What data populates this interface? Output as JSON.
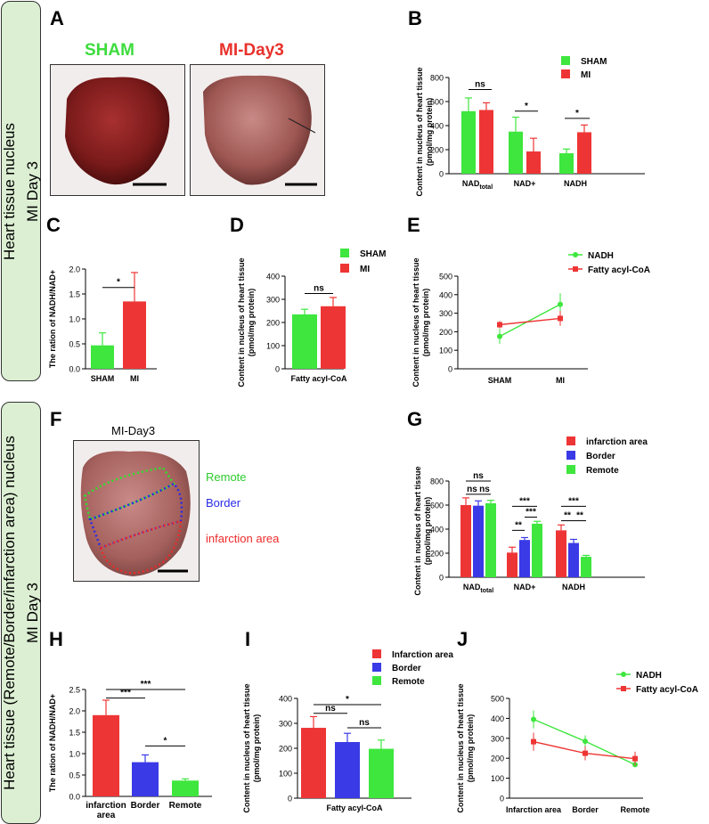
{
  "sidebar": {
    "top": {
      "line1": "Heart tissue nucleus",
      "line2": "MI    Day 3"
    },
    "bottom": {
      "line1": "Heart tissue  (Remote/Border/infarction area)  nucleus",
      "line2": "MI    Day 3"
    }
  },
  "panels": {
    "A": "A",
    "B": "B",
    "C": "C",
    "D": "D",
    "E": "E",
    "F": "F",
    "G": "G",
    "H": "H",
    "I": "I",
    "J": "J"
  },
  "panelA": {
    "sham_title": "SHAM",
    "mi_title": "MI-Day3",
    "sham_color": "#3ddc3d",
    "mi_color": "#e8312b"
  },
  "panelF": {
    "title": "MI-Day3",
    "remote": "Remote",
    "border": "Border",
    "infarct": "infarction area"
  },
  "colors": {
    "sham": "#3ee63e",
    "mi": "#ee3535",
    "infarct": "#ee3535",
    "border": "#3a3ae6",
    "remote": "#3ee63e"
  },
  "chart_data": [
    {
      "id": "B",
      "type": "bar",
      "ylabel": "Content in nucleus of heart tissue",
      "ylabel2": "(pmol/mg protein)",
      "ylim": [
        0,
        800
      ],
      "yticks": [
        0,
        200,
        400,
        600,
        800
      ],
      "categories": [
        {
          "main": "NAD",
          "sub": "total"
        },
        {
          "main": "NAD+",
          "sub": ""
        },
        {
          "main": "NADH",
          "sub": ""
        }
      ],
      "series": [
        {
          "name": "SHAM",
          "values": [
            520,
            350,
            170
          ],
          "errors": [
            110,
            120,
            35
          ]
        },
        {
          "name": "MI",
          "values": [
            530,
            185,
            345
          ],
          "errors": [
            60,
            110,
            60
          ]
        }
      ],
      "sig": [
        "ns",
        "*",
        "*"
      ],
      "legend": "top-right"
    },
    {
      "id": "C",
      "type": "bar",
      "ylabel": "The ration of NADH/NAD+",
      "ylim": [
        0,
        2.0
      ],
      "yticks": [
        "0.0",
        "0.5",
        "1.0",
        "1.5",
        "2.0"
      ],
      "categories": [
        "SHAM",
        "MI"
      ],
      "values": [
        0.47,
        1.35
      ],
      "errors": [
        0.25,
        0.58
      ],
      "sig": "*"
    },
    {
      "id": "D",
      "type": "bar",
      "ylabel": "Content in nucleus of  heart tissue",
      "ylabel2": "(pmol/mg protein)",
      "ylim": [
        0,
        400
      ],
      "yticks": [
        0,
        100,
        200,
        300,
        400
      ],
      "categories": [
        "Fatty acyl-CoA"
      ],
      "series": [
        {
          "name": "SHAM",
          "values": [
            235
          ],
          "errors": [
            22
          ]
        },
        {
          "name": "MI",
          "values": [
            270
          ],
          "errors": [
            38
          ]
        }
      ],
      "sig": "ns",
      "legend": "top-right"
    },
    {
      "id": "E",
      "type": "line",
      "ylabel": "Content in nucleus of  heart tissue",
      "ylabel2": "(pmol/mg protein)",
      "ylim": [
        0,
        500
      ],
      "yticks": [
        0,
        100,
        200,
        300,
        400,
        500
      ],
      "categories": [
        "SHAM",
        "MI"
      ],
      "series": [
        {
          "name": "NADH",
          "values": [
            175,
            348
          ],
          "errors": [
            40,
            60
          ]
        },
        {
          "name": "Fatty acyl-CoA",
          "values": [
            238,
            272
          ],
          "errors": [
            20,
            40
          ]
        }
      ],
      "legend": "top-right"
    },
    {
      "id": "G",
      "type": "bar",
      "ylabel": "Content in nucleus of heart tissue",
      "ylabel2": "(pmol/mg protein)",
      "ylim": [
        0,
        800
      ],
      "yticks": [
        0,
        200,
        400,
        600,
        800
      ],
      "categories": [
        {
          "main": "NAD",
          "sub": "total"
        },
        {
          "main": "NAD+",
          "sub": ""
        },
        {
          "main": "NADH",
          "sub": ""
        }
      ],
      "series": [
        {
          "name": "infarction area",
          "values": [
            600,
            205,
            390
          ],
          "errors": [
            60,
            45,
            45
          ]
        },
        {
          "name": "Border",
          "values": [
            595,
            310,
            285
          ],
          "errors": [
            40,
            20,
            30
          ]
        },
        {
          "name": "Remote",
          "values": [
            615,
            445,
            170
          ],
          "errors": [
            25,
            20,
            12
          ]
        }
      ],
      "sig_labels": [
        "ns",
        "ns",
        "ns",
        "***",
        "**",
        "***",
        "***",
        "**",
        "**"
      ],
      "legend": "top-right"
    },
    {
      "id": "H",
      "type": "bar",
      "ylabel": "The ration of NADH/NAD+",
      "ylim": [
        0,
        2.5
      ],
      "yticks": [
        "0.0",
        "0.5",
        "1.0",
        "1.5",
        "2.0",
        "2.5"
      ],
      "categories": [
        {
          "main": "infarction",
          "sub": "area"
        },
        {
          "main": "Border",
          "sub": ""
        },
        {
          "main": "Remote",
          "sub": ""
        }
      ],
      "values": [
        1.9,
        0.8,
        0.37
      ],
      "errors": [
        0.35,
        0.17,
        0.04
      ],
      "sig_labels": [
        "***",
        "***",
        "*"
      ]
    },
    {
      "id": "I",
      "type": "bar",
      "ylabel": "Content in nucleus of  heart tissue",
      "ylabel2": "(pmol/mg protein)",
      "ylim": [
        0,
        400
      ],
      "yticks": [
        0,
        100,
        200,
        300,
        400
      ],
      "categories": [
        "Fatty acyl-CoA"
      ],
      "series": [
        {
          "name": "Infarction area",
          "values": [
            282
          ],
          "errors": [
            45
          ]
        },
        {
          "name": "Border",
          "values": [
            225
          ],
          "errors": [
            35
          ]
        },
        {
          "name": "Remote",
          "values": [
            198
          ],
          "errors": [
            35
          ]
        }
      ],
      "sig_labels": [
        "ns",
        "*",
        "ns"
      ],
      "legend": "top-right"
    },
    {
      "id": "J",
      "type": "line",
      "ylabel": "Content in nucleus of  heart tissue",
      "ylabel2": "(pmol/mg protein)",
      "ylim": [
        0,
        500
      ],
      "yticks": [
        0,
        100,
        200,
        300,
        400,
        500
      ],
      "categories": [
        "Infarction area",
        "Border",
        "Remote"
      ],
      "series": [
        {
          "name": "NADH",
          "values": [
            395,
            285,
            168
          ],
          "errors": [
            45,
            30,
            12
          ]
        },
        {
          "name": "Fatty acyl-CoA",
          "values": [
            283,
            225,
            198
          ],
          "errors": [
            45,
            35,
            35
          ]
        }
      ],
      "legend": "top-right"
    }
  ]
}
